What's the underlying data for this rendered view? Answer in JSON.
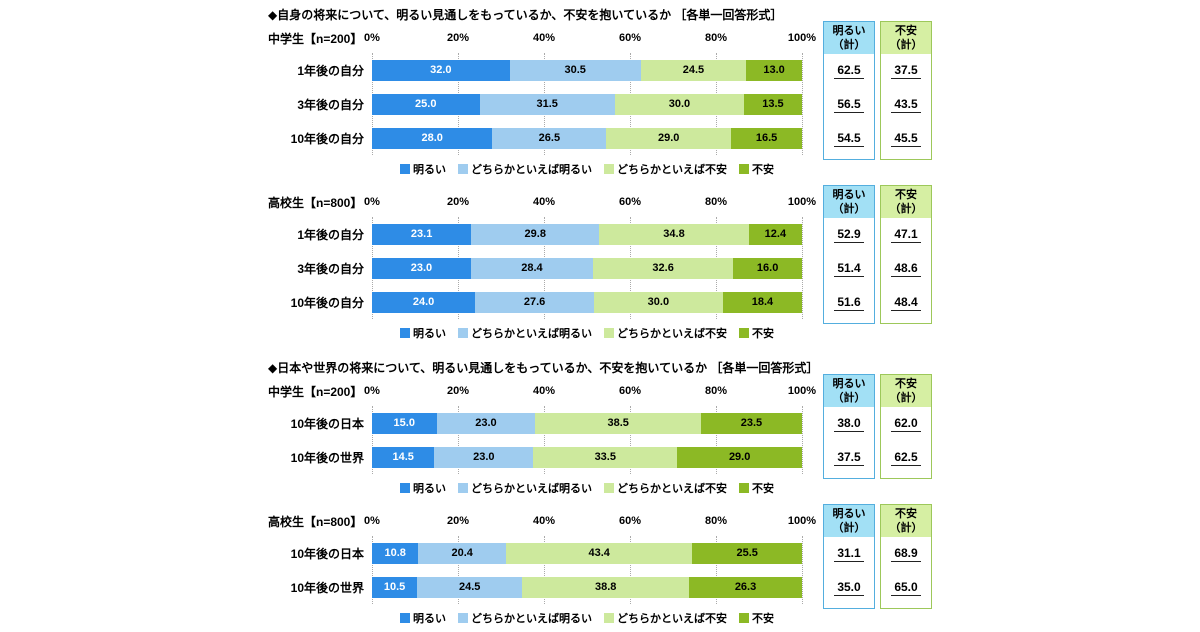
{
  "page": {
    "background": "#ffffff"
  },
  "axis_ticks": [
    "0%",
    "20%",
    "40%",
    "60%",
    "80%",
    "100%"
  ],
  "legend": [
    {
      "label": "明るい",
      "color": "#2e8ce6"
    },
    {
      "label": "どちらかといえば明るい",
      "color": "#9fccef"
    },
    {
      "label": "どちらかといえば不安",
      "color": "#cde99d"
    },
    {
      "label": "不安",
      "color": "#8cb925"
    }
  ],
  "summary": {
    "bright_header": "明るい\n（計）",
    "anxious_header": "不安\n（計）",
    "bright_bg": "#a2e0f5",
    "bright_border": "#54aede",
    "anxious_bg": "#d6efa3",
    "anxious_border": "#9dc85a"
  },
  "chart_data": [
    {
      "type": "bar",
      "orientation": "horizontal",
      "stacked": true,
      "xlim": [
        0,
        100
      ],
      "title": "◆自身の将来について、明るい見通しをもっているか、不安を抱いているか ［各単一回答形式］",
      "series_labels": [
        "明るい",
        "どちらかといえば明るい",
        "どちらかといえば不安",
        "不安"
      ],
      "groups": [
        {
          "label": "中学生【n=200】",
          "rows": [
            {
              "category": "1年後の自分",
              "values": [
                32.0,
                30.5,
                24.5,
                13.0
              ],
              "bright_total": 62.5,
              "anxious_total": 37.5
            },
            {
              "category": "3年後の自分",
              "values": [
                25.0,
                31.5,
                30.0,
                13.5
              ],
              "bright_total": 56.5,
              "anxious_total": 43.5
            },
            {
              "category": "10年後の自分",
              "values": [
                28.0,
                26.5,
                29.0,
                16.5
              ],
              "bright_total": 54.5,
              "anxious_total": 45.5
            }
          ]
        },
        {
          "label": "高校生【n=800】",
          "rows": [
            {
              "category": "1年後の自分",
              "values": [
                23.1,
                29.8,
                34.8,
                12.4
              ],
              "bright_total": 52.9,
              "anxious_total": 47.1
            },
            {
              "category": "3年後の自分",
              "values": [
                23.0,
                28.4,
                32.6,
                16.0
              ],
              "bright_total": 51.4,
              "anxious_total": 48.6
            },
            {
              "category": "10年後の自分",
              "values": [
                24.0,
                27.6,
                30.0,
                18.4
              ],
              "bright_total": 51.6,
              "anxious_total": 48.4
            }
          ]
        }
      ]
    },
    {
      "type": "bar",
      "orientation": "horizontal",
      "stacked": true,
      "xlim": [
        0,
        100
      ],
      "title": "◆日本や世界の将来について、明るい見通しをもっているか、不安を抱いているか ［各単一回答形式］",
      "series_labels": [
        "明るい",
        "どちらかといえば明るい",
        "どちらかといえば不安",
        "不安"
      ],
      "groups": [
        {
          "label": "中学生【n=200】",
          "rows": [
            {
              "category": "10年後の日本",
              "values": [
                15.0,
                23.0,
                38.5,
                23.5
              ],
              "bright_total": 38.0,
              "anxious_total": 62.0
            },
            {
              "category": "10年後の世界",
              "values": [
                14.5,
                23.0,
                33.5,
                29.0
              ],
              "bright_total": 37.5,
              "anxious_total": 62.5
            }
          ]
        },
        {
          "label": "高校生【n=800】",
          "rows": [
            {
              "category": "10年後の日本",
              "values": [
                10.8,
                20.4,
                43.4,
                25.5
              ],
              "bright_total": 31.1,
              "anxious_total": 68.9
            },
            {
              "category": "10年後の世界",
              "values": [
                10.5,
                24.5,
                38.8,
                26.3
              ],
              "bright_total": 35.0,
              "anxious_total": 65.0
            }
          ]
        }
      ]
    }
  ]
}
